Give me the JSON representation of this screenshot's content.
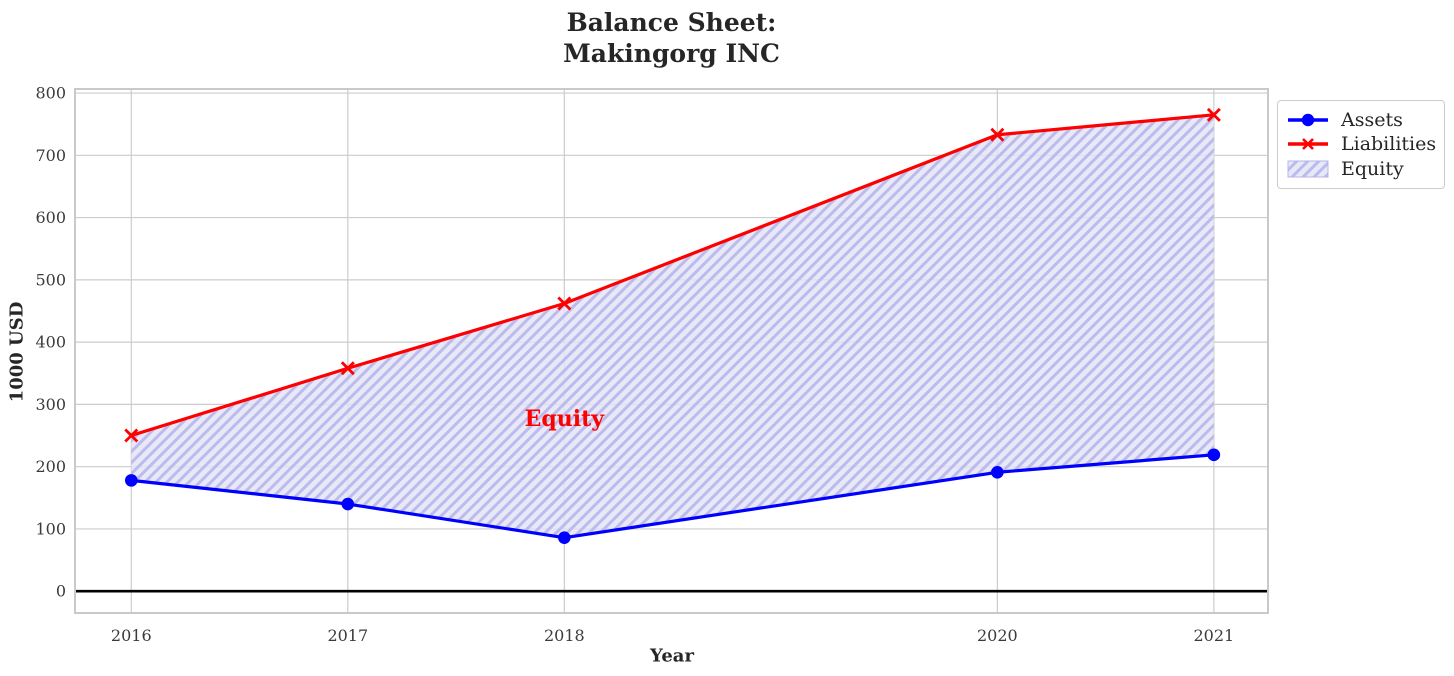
{
  "chart_data": {
    "type": "line",
    "title_lines": [
      "Balance Sheet:",
      "Makingorg INC"
    ],
    "xlabel": "Year",
    "ylabel": "1000 USD",
    "x": [
      2016,
      2017,
      2018,
      2020,
      2021
    ],
    "xtick_labels": [
      "2016",
      "2017",
      "2018",
      "2020",
      "2021"
    ],
    "yticks": [
      0,
      100,
      200,
      300,
      400,
      500,
      600,
      700,
      800
    ],
    "xlim": [
      2015.74,
      2021.25
    ],
    "ylim": [
      -35,
      806.5
    ],
    "grid": true,
    "grid_color": "#cccccc",
    "spine_color": "#c9c9c9",
    "tick_label_color": "#3b3b3b",
    "series": [
      {
        "name": "Assets",
        "color": "#0000ff",
        "marker": "circle",
        "values": [
          178,
          140,
          86,
          191,
          219
        ]
      },
      {
        "name": "Liabilities",
        "color": "#ff0000",
        "marker": "x",
        "values": [
          250,
          358,
          462,
          733,
          765
        ]
      }
    ],
    "equity_fill": {
      "label": "Equity",
      "between": [
        "Liabilities",
        "Assets"
      ],
      "face_color": "#e3e3f8",
      "hatch_color": "#b4b4ea",
      "hatch_style": "//"
    },
    "annotation": {
      "text": "Equity",
      "color": "#ff0000",
      "x": 2018,
      "y": 276
    },
    "zero_line": {
      "y": 0,
      "color": "#000000"
    },
    "legend": {
      "position": "outside upper right",
      "entries": [
        "Assets",
        "Liabilities",
        "Equity"
      ]
    }
  }
}
